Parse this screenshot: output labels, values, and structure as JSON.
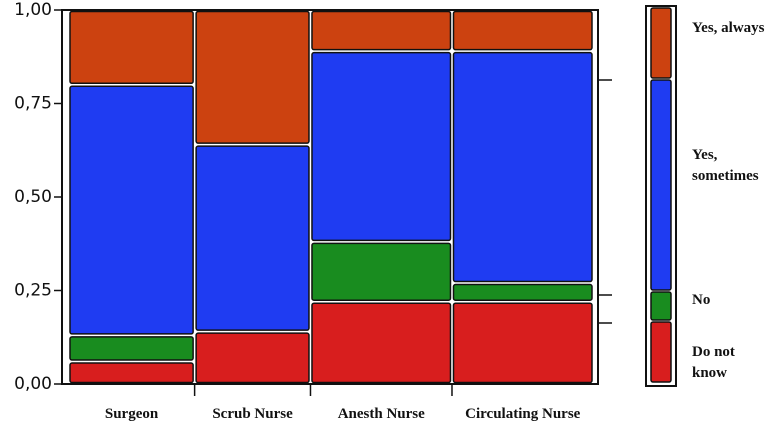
{
  "chart_data": {
    "type": "mosaic",
    "categories": [
      "Surgeon",
      "Scrub Nurse",
      "Anesth Nurse",
      "Circulating Nurse"
    ],
    "column_shares": [
      0.24,
      0.22,
      0.27,
      0.27
    ],
    "series": [
      {
        "name": "Do not know",
        "color": "#d81e1e",
        "values": [
          0.06,
          0.14,
          0.22,
          0.22
        ]
      },
      {
        "name": "No",
        "color": "#198c1f",
        "values": [
          0.07,
          0,
          0.16,
          0.05
        ]
      },
      {
        "name": "Yes, sometimes",
        "color": "#1f3cf2",
        "values": [
          0.67,
          0.5,
          0.51,
          0.62
        ]
      },
      {
        "name": "Yes, always",
        "color": "#cc4210",
        "values": [
          0.2,
          0.36,
          0.11,
          0.11
        ]
      }
    ],
    "ylim": [
      0,
      1
    ],
    "yticks": [
      {
        "value": 0,
        "label": "0,00"
      },
      {
        "value": 0.25,
        "label": "0,25"
      },
      {
        "value": 0.5,
        "label": "0,50"
      },
      {
        "value": 0.75,
        "label": "0,75"
      },
      {
        "value": 1,
        "label": "1,00"
      }
    ]
  }
}
